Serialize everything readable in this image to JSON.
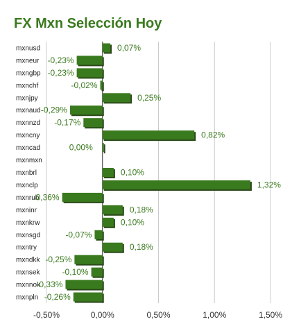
{
  "chart_data": {
    "type": "bar",
    "orientation": "horizontal",
    "title": "FX Mxn Selección Hoy",
    "xlabel": "",
    "ylabel": "",
    "categories": [
      "mxnusd",
      "mxneur",
      "mxngbp",
      "mxnchf",
      "mxnjpy",
      "mxnaud",
      "mxnnzd",
      "mxncny",
      "mxncad",
      "mxnmxn",
      "mxnbrl",
      "mxnclp",
      "mxnrub",
      "mxninr",
      "mxnkrw",
      "mxnsgd",
      "mxntry",
      "mxndkk",
      "mxnsek",
      "mxnnok",
      "mxnpln"
    ],
    "values": [
      0.07,
      -0.23,
      -0.23,
      -0.02,
      0.25,
      -0.29,
      -0.17,
      0.82,
      0.0,
      null,
      0.1,
      1.32,
      -0.36,
      0.18,
      0.1,
      -0.07,
      0.18,
      -0.25,
      -0.1,
      -0.33,
      -0.26
    ],
    "data_labels": [
      "0,07%",
      "-0,23%",
      "-0,23%",
      "-0,02%",
      "0,25%",
      "-0,29%",
      "-0,17%",
      "0,82%",
      "0,00%",
      "",
      "0,10%",
      "1,32%",
      "-0,36%",
      "0,18%",
      "0,10%",
      "-0,07%",
      "0,18%",
      "-0,25%",
      "-0,10%",
      "-0,33%",
      "-0,26%"
    ],
    "xlim": [
      -0.5,
      1.5
    ],
    "xticks": [
      -0.5,
      0,
      0.5,
      1.0,
      1.5
    ],
    "xtick_labels": [
      "-0,50%",
      "0,00%",
      "0,50%",
      "1,00%",
      "1,50%"
    ],
    "grid": "vertical",
    "legend": "none",
    "colors": {
      "bar": "#3a7a1e",
      "bar_shadow": "#2a4a1a",
      "title": "#3a7a1e",
      "label": "#3a7a1e",
      "grid": "#cccccc"
    }
  }
}
